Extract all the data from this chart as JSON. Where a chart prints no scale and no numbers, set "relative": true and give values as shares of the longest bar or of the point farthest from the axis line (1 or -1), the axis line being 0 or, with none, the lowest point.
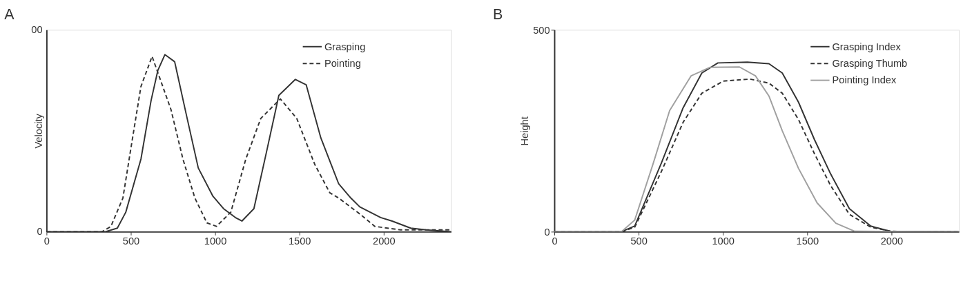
{
  "chart_data": [
    {
      "type": "line",
      "title": "A",
      "ylabel": "Velocity",
      "relative": true,
      "annotations": [
        "0",
        "00"
      ],
      "xlim": [
        0,
        2400
      ],
      "xticks": [
        0,
        500,
        1000,
        1500,
        2000
      ],
      "grid": false,
      "legend": "top right",
      "marker": "none",
      "series": [
        {
          "name": "Grasping",
          "color": "#333333",
          "line_style": "solid",
          "x": [
            0,
            200,
            350,
            420,
            470,
            560,
            620,
            660,
            702,
            760,
            827,
            900,
            987,
            1050,
            1120,
            1159,
            1230,
            1307,
            1378,
            1476,
            1540,
            1627,
            1733,
            1805,
            1858,
            1982,
            2050,
            2160,
            2250,
            2400
          ],
          "values": [
            0,
            0,
            0,
            0.02,
            0.11,
            0.41,
            0.74,
            0.91,
            1,
            0.96,
            0.67,
            0.36,
            0.2,
            0.13,
            0.08,
            0.06,
            0.13,
            0.46,
            0.77,
            0.86,
            0.83,
            0.53,
            0.27,
            0.19,
            0.14,
            0.08,
            0.06,
            0.02,
            0.01,
            0
          ]
        },
        {
          "name": "Pointing",
          "color": "#333333",
          "line_style": "dashed",
          "x": [
            0,
            200,
            330,
            382,
            453,
            507,
            560,
            626,
            738,
            809,
            880,
            951,
            1008,
            1093,
            1182,
            1271,
            1387,
            1484,
            1591,
            1680,
            1733,
            1858,
            1947,
            2100,
            2400
          ],
          "values": [
            0,
            0,
            0,
            0.03,
            0.19,
            0.51,
            0.82,
            0.99,
            0.69,
            0.41,
            0.19,
            0.05,
            0.03,
            0.11,
            0.41,
            0.64,
            0.75,
            0.64,
            0.38,
            0.22,
            0.19,
            0.1,
            0.03,
            0.01,
            0.01
          ]
        }
      ]
    },
    {
      "type": "line",
      "title": "B",
      "ylabel": "Height",
      "xlim": [
        0,
        2400
      ],
      "xticks": [
        0,
        500,
        1000,
        1500,
        2000
      ],
      "ylim": [
        0,
        500
      ],
      "yticks": [
        0,
        500
      ],
      "grid": false,
      "legend": "top right",
      "marker": "none",
      "series": [
        {
          "name": "Grasping Index",
          "color": "#333333",
          "line_style": "solid",
          "x": [
            0,
            398,
            477,
            636,
            764,
            875,
            970,
            1145,
            1273,
            1352,
            1448,
            1543,
            1639,
            1750,
            1877,
            1989,
            2400
          ],
          "values": [
            0,
            0,
            14,
            171,
            307,
            393,
            418,
            420,
            416,
            393,
            321,
            228,
            143,
            57,
            14,
            1,
            0
          ]
        },
        {
          "name": "Grasping Thumb",
          "color": "#333333",
          "line_style": "dashed",
          "x": [
            0,
            398,
            477,
            636,
            764,
            875,
            1002,
            1161,
            1273,
            1352,
            1448,
            1543,
            1639,
            1750,
            1877,
            2000,
            2400
          ],
          "values": [
            0,
            0,
            11,
            150,
            271,
            343,
            373,
            378,
            368,
            343,
            278,
            193,
            114,
            43,
            11,
            1,
            0
          ]
        },
        {
          "name": "Pointing Index",
          "color": "#a0a0a0",
          "line_style": "solid",
          "x": [
            0,
            398,
            477,
            588,
            684,
            811,
            922,
            1098,
            1193,
            1273,
            1352,
            1448,
            1559,
            1670,
            1782,
            2400
          ],
          "values": [
            0,
            0,
            29,
            171,
            300,
            386,
            407,
            408,
            386,
            336,
            250,
            157,
            71,
            21,
            1,
            0
          ]
        }
      ]
    }
  ]
}
